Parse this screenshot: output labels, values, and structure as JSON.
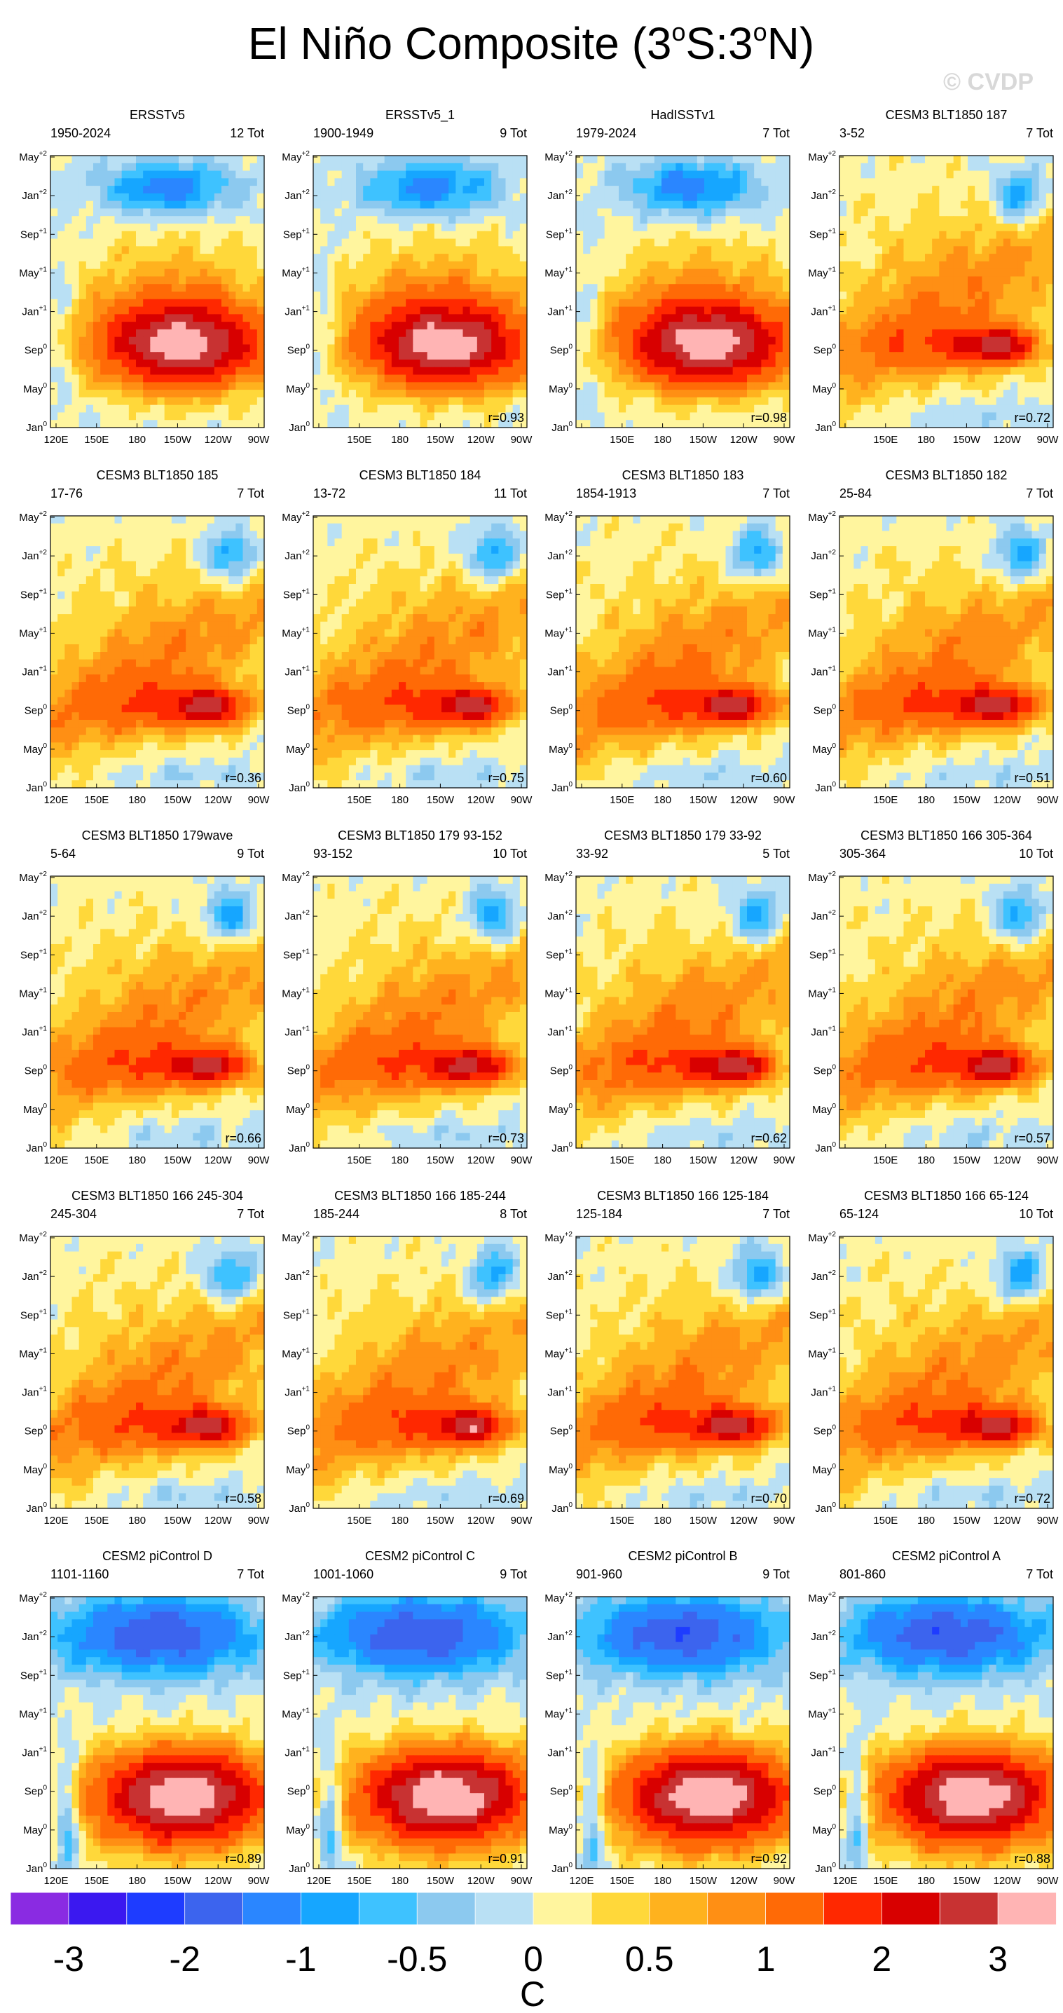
{
  "title": "El Niño Composite (3°S:3°N)",
  "title_parts": {
    "pre": "El Niño Composite (3",
    "o1": "o",
    "mid": "S:3",
    "o2": "o",
    "post": "N)"
  },
  "watermark": "© CVDP",
  "chart_data": {
    "type": "heatmap",
    "title": "El Niño Composite (3°S:3°N)",
    "x_ticks": [
      "120E",
      "150E",
      "180",
      "150W",
      "120W",
      "90W"
    ],
    "y_ticks": [
      {
        "base": "Jan",
        "sup": "0"
      },
      {
        "base": "May",
        "sup": "0"
      },
      {
        "base": "Sep",
        "sup": "0"
      },
      {
        "base": "Jan",
        "sup": "+1"
      },
      {
        "base": "May",
        "sup": "+1"
      },
      {
        "base": "Sep",
        "sup": "+1"
      },
      {
        "base": "Jan",
        "sup": "+2"
      },
      {
        "base": "May",
        "sup": "+2"
      }
    ],
    "colorbar": {
      "unit": "C",
      "labels": [
        "-3",
        "-2",
        "-1",
        "-0.5",
        "0",
        "0.5",
        "1",
        "2",
        "3"
      ],
      "levels": [
        -3.5,
        -3,
        -2.5,
        -2,
        -1.5,
        -1,
        -0.75,
        -0.5,
        -0.25,
        0,
        0.25,
        0.5,
        0.75,
        1,
        1.5,
        2,
        2.5,
        3,
        3.5
      ],
      "colors": [
        "#8a2be2",
        "#3b18f0",
        "#1e3cff",
        "#3c64ee",
        "#2a86ff",
        "#16a6ff",
        "#3ec2ff",
        "#8cc9ef",
        "#b9e0f4",
        "#fff59e",
        "#ffd83a",
        "#ffb21e",
        "#ff8f14",
        "#ff6a06",
        "#ff2800",
        "#d80000",
        "#c83232",
        "#ffb4b4"
      ]
    },
    "panels": [
      {
        "name": "ERSSTv5",
        "years": "1950-2024",
        "count": "12 Tot",
        "r": ""
      },
      {
        "name": "ERSSTv5_1",
        "years": "1900-1949",
        "count": "9 Tot",
        "r": "r=0.93"
      },
      {
        "name": "HadISSTv1",
        "years": "1979-2024",
        "count": "7 Tot",
        "r": "r=0.98"
      },
      {
        "name": "CESM3 BLT1850 187",
        "years": "3-52",
        "count": "7 Tot",
        "r": "r=0.72"
      },
      {
        "name": "CESM3 BLT1850 185",
        "years": "17-76",
        "count": "7 Tot",
        "r": "r=0.36"
      },
      {
        "name": "CESM3 BLT1850 184",
        "years": "13-72",
        "count": "11 Tot",
        "r": "r=0.75"
      },
      {
        "name": "CESM3 BLT1850 183",
        "years": "1854-1913",
        "count": "7 Tot",
        "r": "r=0.60"
      },
      {
        "name": "CESM3 BLT1850 182",
        "years": "25-84",
        "count": "7 Tot",
        "r": "r=0.51"
      },
      {
        "name": "CESM3 BLT1850 179wave",
        "years": "5-64",
        "count": "9 Tot",
        "r": "r=0.66"
      },
      {
        "name": "CESM3 BLT1850 179 93-152",
        "years": "93-152",
        "count": "10 Tot",
        "r": "r=0.73"
      },
      {
        "name": "CESM3 BLT1850 179 33-92",
        "years": "33-92",
        "count": "5 Tot",
        "r": "r=0.62"
      },
      {
        "name": "CESM3 BLT1850 166 305-364",
        "years": "305-364",
        "count": "10 Tot",
        "r": "r=0.57"
      },
      {
        "name": "CESM3 BLT1850 166 245-304",
        "years": "245-304",
        "count": "7 Tot",
        "r": "r=0.58"
      },
      {
        "name": "CESM3 BLT1850 166 185-244",
        "years": "185-244",
        "count": "8 Tot",
        "r": "r=0.69"
      },
      {
        "name": "CESM3 BLT1850 166 125-184",
        "years": "125-184",
        "count": "7 Tot",
        "r": "r=0.70"
      },
      {
        "name": "CESM3 BLT1850 166 65-124",
        "years": "65-124",
        "count": "10 Tot",
        "r": "r=0.72"
      },
      {
        "name": "CESM2 piControl D",
        "years": "1101-1160",
        "count": "7 Tot",
        "r": "r=0.89"
      },
      {
        "name": "CESM2 piControl C",
        "years": "1001-1060",
        "count": "9 Tot",
        "r": "r=0.91"
      },
      {
        "name": "CESM2 piControl B",
        "years": "901-960",
        "count": "9 Tot",
        "r": "r=0.92"
      },
      {
        "name": "CESM2 piControl A",
        "years": "801-860",
        "count": "7 Tot",
        "r": "r=0.88"
      }
    ]
  }
}
